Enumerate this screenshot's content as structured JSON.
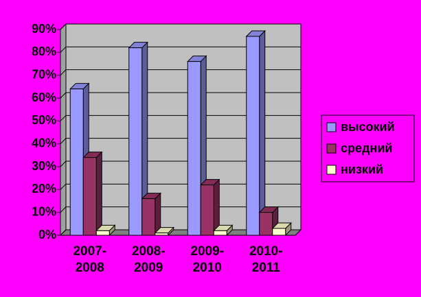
{
  "chart_data": {
    "type": "bar3d",
    "categories": [
      "2007-2008",
      "2008-2009",
      "2009-2010",
      "2010-2011"
    ],
    "series": [
      {
        "name": "высокий",
        "color": "#9999ff",
        "values": [
          64,
          82,
          76,
          87
        ]
      },
      {
        "name": "средний",
        "color": "#993366",
        "values": [
          34,
          16,
          22,
          10
        ]
      },
      {
        "name": "низкий",
        "color": "#ffffcc",
        "values": [
          2,
          1,
          2,
          3
        ]
      }
    ],
    "ylim": [
      0,
      90
    ],
    "yticks": [
      {
        "value": 0,
        "label": "0%"
      },
      {
        "value": 10,
        "label": "10%"
      },
      {
        "value": 20,
        "label": "20%"
      },
      {
        "value": 30,
        "label": "30%"
      },
      {
        "value": 40,
        "label": "40%"
      },
      {
        "value": 50,
        "label": "50%"
      },
      {
        "value": 60,
        "label": "60%"
      },
      {
        "value": 70,
        "label": "70%"
      },
      {
        "value": 80,
        "label": "80%"
      },
      {
        "value": 90,
        "label": "90%"
      }
    ],
    "grid": true,
    "legend": "right"
  }
}
